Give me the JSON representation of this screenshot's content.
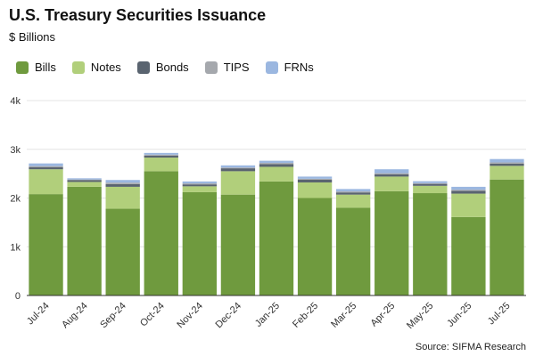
{
  "title": "U.S. Treasury Securities Issuance",
  "subtitle": "$ Billions",
  "source": "Source: SIFMA Research",
  "colors": {
    "Bills": "#6f9a3e",
    "Notes": "#b1cf7b",
    "Bonds": "#5a6470",
    "TIPS": "#a5a8ad",
    "FRNs": "#9bb7e0",
    "grid": "#e4e4e4",
    "axis": "#333333"
  },
  "chart_data": {
    "type": "bar",
    "stacked": true,
    "title": "U.S. Treasury Securities Issuance",
    "subtitle": "$ Billions",
    "xlabel": "",
    "ylabel": "",
    "ylim": [
      0,
      4000
    ],
    "yticks": [
      0,
      1000,
      2000,
      3000,
      4000
    ],
    "ytick_labels": [
      "0",
      "1k",
      "2k",
      "3k",
      "4k"
    ],
    "grid": true,
    "legend_position": "top-left",
    "categories": [
      "Jul-24",
      "Aug-24",
      "Sep-24",
      "Oct-24",
      "Nov-24",
      "Dec-24",
      "Jan-25",
      "Feb-25",
      "Mar-25",
      "Apr-25",
      "May-25",
      "Jun-25",
      "Jul-25"
    ],
    "series": [
      {
        "name": "Bills",
        "values": [
          2080,
          2230,
          1780,
          2550,
          2120,
          2070,
          2340,
          2000,
          1800,
          2140,
          2100,
          1610,
          2380
        ]
      },
      {
        "name": "Notes",
        "values": [
          510,
          100,
          450,
          280,
          120,
          480,
          300,
          320,
          270,
          300,
          150,
          480,
          280
        ]
      },
      {
        "name": "Bonds",
        "values": [
          40,
          40,
          55,
          40,
          40,
          60,
          55,
          55,
          45,
          45,
          40,
          60,
          45
        ]
      },
      {
        "name": "TIPS",
        "values": [
          25,
          10,
          30,
          20,
          20,
          15,
          25,
          20,
          20,
          25,
          15,
          20,
          25
        ]
      },
      {
        "name": "FRNs",
        "values": [
          55,
          25,
          55,
          35,
          40,
          45,
          45,
          45,
          50,
          80,
          40,
          60,
          70
        ]
      }
    ]
  }
}
